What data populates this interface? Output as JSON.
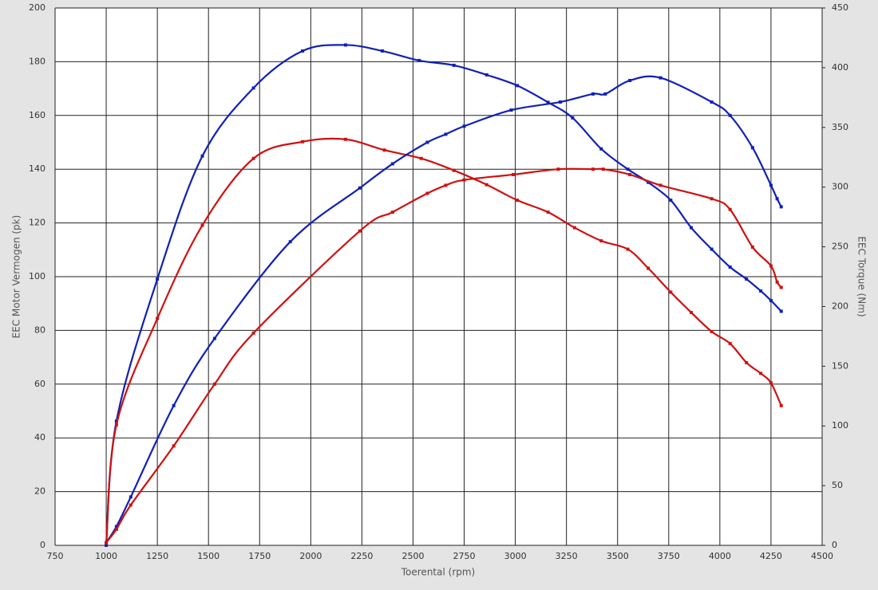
{
  "chart_data": {
    "type": "line",
    "x_label": "Toerental (rpm)",
    "y_label": "EEC Motor Vermogen (pk)",
    "y2_label": "EEC Torque (Nm)",
    "xlim": [
      750,
      4500
    ],
    "xticks": [
      750,
      1000,
      1250,
      1500,
      1750,
      2000,
      2250,
      2500,
      2750,
      3000,
      3250,
      3500,
      3750,
      4000,
      4250,
      4500
    ],
    "ylim": [
      0,
      200
    ],
    "yticks": [
      0,
      20,
      40,
      60,
      80,
      100,
      120,
      140,
      160,
      180,
      200
    ],
    "y2lim": [
      0,
      450
    ],
    "y2ticks": [
      0,
      50,
      100,
      150,
      200,
      250,
      300,
      350,
      400,
      450
    ],
    "grid": true,
    "series": [
      {
        "color": "#1020b8",
        "axis": "y2",
        "x": [
          1000,
          1050,
          1250,
          1470,
          1720,
          1960,
          2170,
          2350,
          2530,
          2700,
          2860,
          3010,
          3160,
          3280,
          3420,
          3550,
          3650,
          3760,
          3860,
          3960,
          4050,
          4130,
          4200,
          4250,
          4300
        ],
        "values": [
          0,
          104,
          223,
          326,
          383,
          414,
          419,
          414,
          406,
          402,
          394,
          385,
          371,
          358,
          332,
          315,
          304,
          289,
          266,
          248,
          233,
          223,
          213,
          205,
          196
        ]
      },
      {
        "color": "#d01010",
        "axis": "y2",
        "x": [
          1000,
          1050,
          1250,
          1470,
          1720,
          1960,
          2170,
          2360,
          2540,
          2700,
          2860,
          3010,
          3160,
          3290,
          3420,
          3550,
          3650,
          3760,
          3860,
          3960,
          4050,
          4130,
          4200,
          4250,
          4300
        ],
        "values": [
          2,
          101,
          190,
          268,
          324,
          338,
          340,
          331,
          324,
          314,
          302,
          289,
          279,
          266,
          255,
          248,
          232,
          212,
          195,
          179,
          169,
          153,
          144,
          136,
          117
        ]
      },
      {
        "color": "#1020b8",
        "x": [
          1000,
          1050,
          1120,
          1330,
          1530,
          1900,
          2240,
          2400,
          2570,
          2660,
          2750,
          2980,
          3220,
          3380,
          3440,
          3560,
          3710,
          3960,
          4050,
          4160,
          4250,
          4280,
          4300
        ],
        "values": [
          1,
          7,
          18,
          52,
          77,
          113,
          133,
          142,
          150,
          153,
          156,
          162,
          165,
          168,
          168,
          173,
          174,
          165,
          160,
          148,
          134,
          129,
          126
        ]
      },
      {
        "color": "#d01010",
        "x": [
          1000,
          1050,
          1120,
          1330,
          1530,
          1720,
          2240,
          2400,
          2570,
          2660,
          2750,
          2990,
          3210,
          3380,
          3430,
          3560,
          3710,
          3960,
          4050,
          4160,
          4250,
          4280,
          4300
        ],
        "values": [
          1,
          6,
          15,
          37,
          60,
          79,
          117,
          124,
          131,
          134,
          136,
          138,
          140,
          140,
          140,
          138,
          134,
          129,
          125,
          111,
          104,
          98,
          96
        ]
      }
    ]
  }
}
